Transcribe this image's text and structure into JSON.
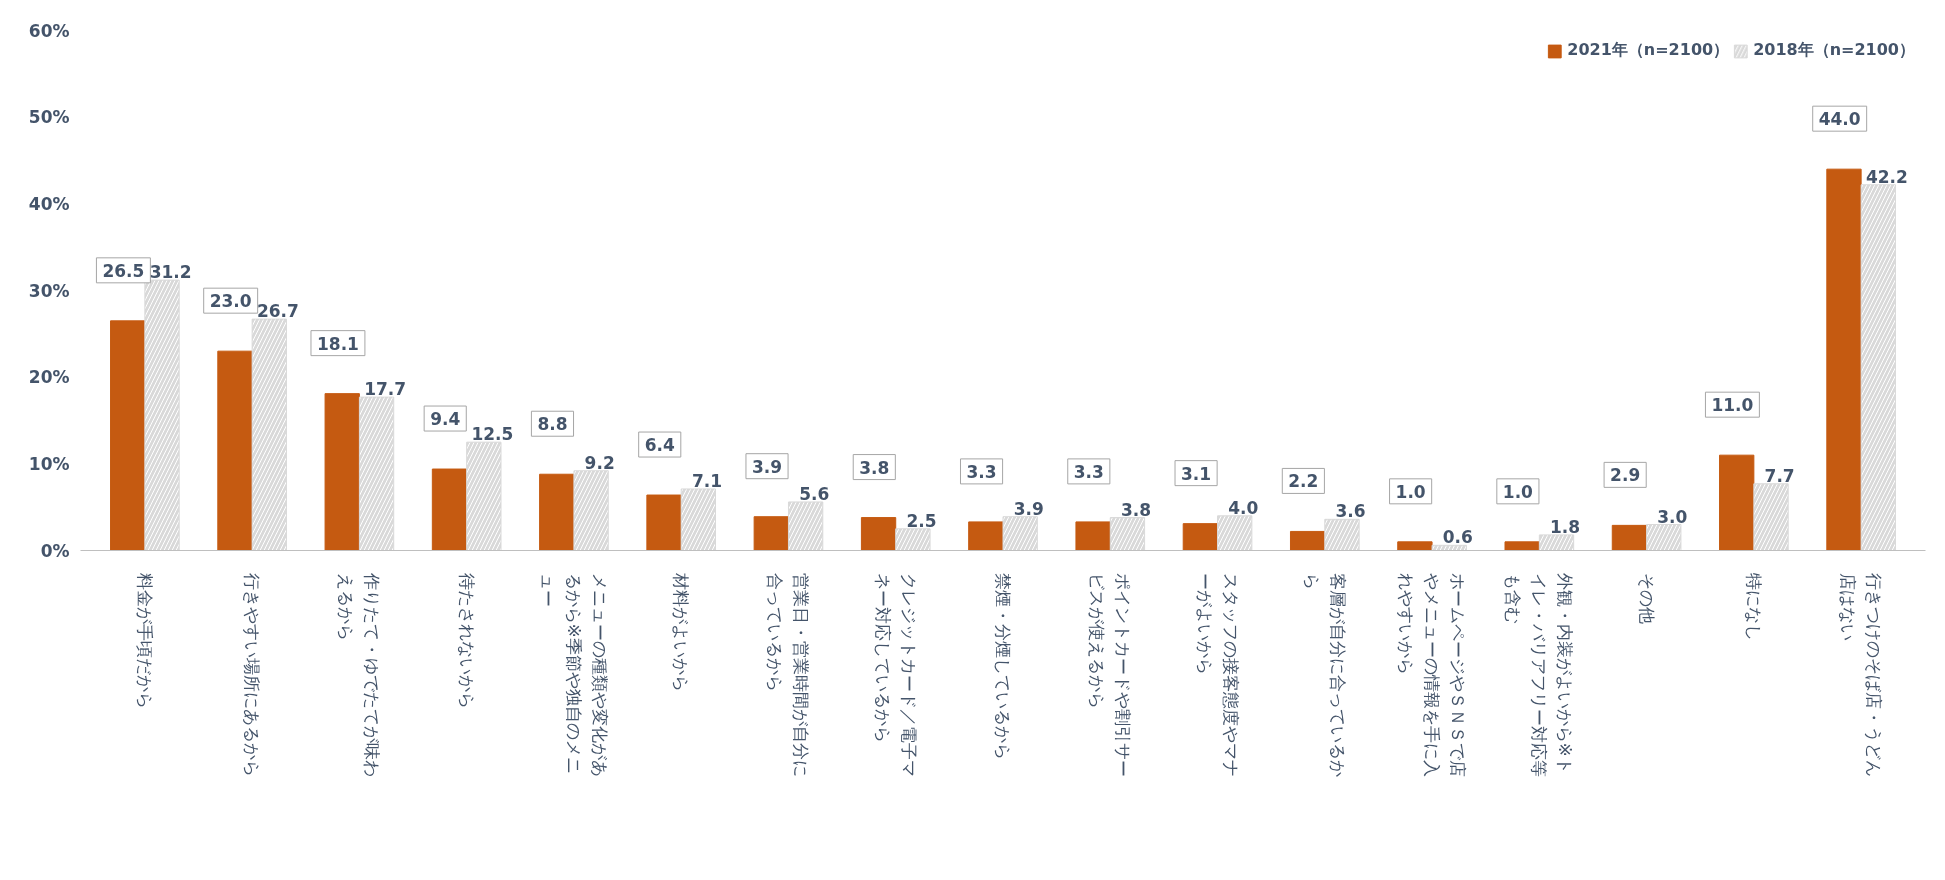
{
  "chart_data": {
    "type": "bar",
    "categories": [
      "料金が手頃だから",
      "行きやすい場所にあるから",
      "作りたて・ゆでたてが味わえるから",
      "待たされないから",
      "メニューの種類や変化があるから※季節や独自のメニュー",
      "材料がよいから",
      "営業日・営業時間が自分に合っているから",
      "クレジットカード／電子マネー対応しているから",
      "禁煙・分煙しているから",
      "ポイントカードや割引サービスが使えるから",
      "スタッフの接客態度やマナーがよいから",
      "客層が自分に合っているから",
      "ホームページやＳＮＳで店やメニューの情報を手に入れやすいから",
      "外観・内装がよいから※トイレ・バリアフリー対応等も含む",
      "その他",
      "特になし",
      "行きつけのそば店・うどん店はない"
    ],
    "series": [
      {
        "name": "2021年（n=2100）",
        "color": "#c55a11",
        "values": [
          26.5,
          23.0,
          18.1,
          9.4,
          8.8,
          6.4,
          3.9,
          3.8,
          3.3,
          3.3,
          3.1,
          2.2,
          1.0,
          1.0,
          2.9,
          11.0,
          44.0
        ],
        "value_labels": [
          "26.5",
          "23.0",
          "18.1",
          "9.4",
          "8.8",
          "6.4",
          "3.9",
          "3.8",
          "3.3",
          "3.3",
          "3.1",
          "2.2",
          "1.0",
          "1.0",
          "2.9",
          "11.0",
          "44.0"
        ]
      },
      {
        "name": "2018年（n=2100）",
        "color": "#d9d9d9",
        "values": [
          31.2,
          26.7,
          17.7,
          12.5,
          9.2,
          7.1,
          5.6,
          2.5,
          3.9,
          3.8,
          4.0,
          3.6,
          0.6,
          1.8,
          3.0,
          7.7,
          42.2
        ],
        "value_labels": [
          "31.2",
          "26.7",
          "17.7",
          "12.5",
          "9.2",
          "7.1",
          "5.6",
          "2.5",
          "3.9",
          "3.8",
          "4.0",
          "3.6",
          "0.6",
          "1.8",
          "3.0",
          "7.7",
          "42.2"
        ]
      }
    ],
    "ylim": [
      0,
      60
    ],
    "yticks": [
      {
        "value": 0,
        "label": "0%"
      },
      {
        "value": 10,
        "label": "10%"
      },
      {
        "value": 20,
        "label": "20%"
      },
      {
        "value": 30,
        "label": "30%"
      },
      {
        "value": 40,
        "label": "40%"
      },
      {
        "value": 50,
        "label": "50%"
      },
      {
        "value": 60,
        "label": "60%"
      }
    ],
    "legend": "top right",
    "grid": false
  }
}
